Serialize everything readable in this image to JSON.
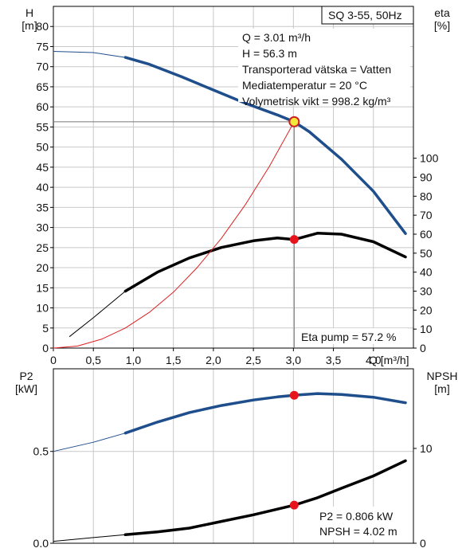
{
  "chart_data": [
    {
      "type": "line",
      "title": "SQ 3-55, 50Hz",
      "xlabel": "Q [m³/h]",
      "ylabel_left": [
        "H",
        "[m]"
      ],
      "ylabel_right": [
        "eta",
        "[%]"
      ],
      "xlim": [
        0,
        4.5
      ],
      "ylim_left": [
        0,
        85
      ],
      "ylim_right": [
        0,
        180
      ],
      "x_ticks": [
        "0",
        "0,5",
        "1,0",
        "1,5",
        "2,0",
        "2,5",
        "3,0",
        "3,5",
        "4,0"
      ],
      "y_ticks_left": [
        0,
        5,
        10,
        15,
        20,
        25,
        30,
        35,
        40,
        45,
        50,
        55,
        60,
        65,
        70,
        75,
        80
      ],
      "y_ticks_right": [
        0,
        10,
        20,
        30,
        40,
        50,
        60,
        70,
        80,
        90,
        100
      ],
      "grid": true,
      "series": [
        {
          "role": "head",
          "axis": "left",
          "color": "#1f4e8c",
          "x": [
            0.0,
            0.5,
            0.9,
            1.2,
            1.6,
            2.0,
            2.4,
            2.8,
            3.01,
            3.2,
            3.6,
            4.0,
            4.4
          ],
          "y": [
            73.8,
            73.5,
            72.3,
            70.6,
            67.5,
            64.2,
            60.9,
            58.0,
            56.3,
            53.8,
            47.0,
            39.0,
            28.5
          ],
          "thin_below_x": 0.9
        },
        {
          "role": "eta-pump",
          "axis": "right",
          "color": "#000000",
          "x": [
            0.2,
            0.5,
            0.9,
            1.3,
            1.7,
            2.1,
            2.5,
            2.8,
            3.01,
            3.3,
            3.6,
            4.0,
            4.4
          ],
          "y": [
            6,
            16,
            30,
            40,
            47.5,
            53,
            56.5,
            58,
            57.2,
            60.5,
            60,
            56,
            48
          ],
          "thin_below_x": 0.9
        },
        {
          "role": "system-curve",
          "axis": "left",
          "color": "#e02020",
          "x": [
            0.0,
            0.3,
            0.6,
            0.9,
            1.2,
            1.5,
            1.8,
            2.1,
            2.4,
            2.7,
            3.01
          ],
          "y": [
            0.0,
            0.5,
            2.2,
            5.0,
            8.9,
            13.9,
            20.1,
            27.3,
            35.7,
            45.2,
            56.3
          ]
        }
      ],
      "operating_point": {
        "q": 3.01,
        "h": 56.3,
        "eta": 57.2
      },
      "info_lines": [
        "Q = 3.01 m³/h",
        "H = 56.3 m",
        "Transporterad vätska = Vatten",
        "Mediatemperatur = 20 °C",
        "Volymetrisk vikt = 998.2 kg/m³"
      ],
      "eta_label": "Eta pump = 57.2 %"
    },
    {
      "type": "line",
      "ylabel_left": [
        "P2",
        "[kW]"
      ],
      "ylabel_right": [
        "NPSH",
        "[m]"
      ],
      "xlim": [
        0,
        4.5
      ],
      "ylim_left": [
        0.0,
        0.95
      ],
      "ylim_right": [
        0,
        18.4
      ],
      "y_ticks_left": [
        "0.0",
        "0.5"
      ],
      "y_ticks_right": [
        "0",
        "10"
      ],
      "grid": true,
      "series": [
        {
          "role": "p2",
          "axis": "left",
          "color": "#1f4e8c",
          "x": [
            0.0,
            0.5,
            0.9,
            1.3,
            1.7,
            2.1,
            2.5,
            2.8,
            3.01,
            3.3,
            3.6,
            4.0,
            4.4
          ],
          "y": [
            0.5,
            0.55,
            0.6,
            0.66,
            0.712,
            0.75,
            0.78,
            0.797,
            0.806,
            0.815,
            0.81,
            0.795,
            0.765
          ],
          "thin_below_x": 0.9
        },
        {
          "role": "npsh",
          "axis": "right",
          "color": "#000000",
          "x": [
            0.0,
            0.5,
            0.9,
            1.3,
            1.7,
            2.1,
            2.5,
            2.8,
            3.01,
            3.3,
            3.6,
            4.0,
            4.4
          ],
          "y": [
            0.2,
            0.6,
            0.9,
            1.2,
            1.6,
            2.3,
            3.0,
            3.6,
            4.02,
            4.8,
            5.8,
            7.1,
            8.7
          ],
          "thin_below_x": 0.9
        }
      ],
      "operating_point": {
        "q": 3.01,
        "p2": 0.806,
        "npsh": 4.02
      },
      "info_lines": [
        "P2 = 0.806 kW",
        "NPSH = 4.02 m"
      ]
    }
  ]
}
